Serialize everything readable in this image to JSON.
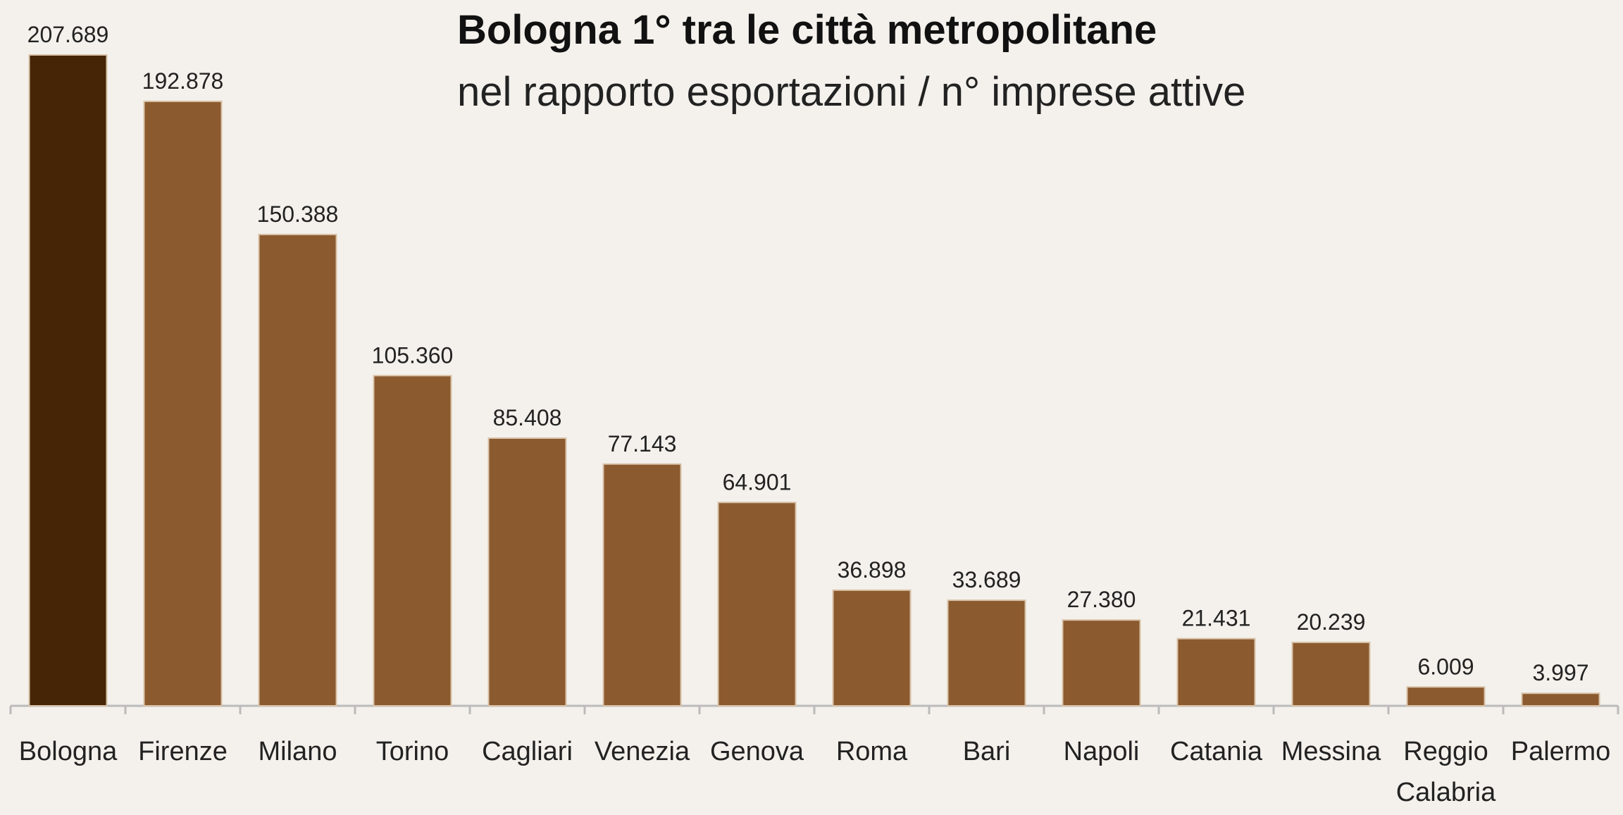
{
  "chart_data": {
    "type": "bar",
    "title": "Bologna 1° tra le città metropolitane",
    "subtitle": "nel rapporto esportazioni / n° imprese attive",
    "categories": [
      "Bologna",
      "Firenze",
      "Milano",
      "Torino",
      "Cagliari",
      "Venezia",
      "Genova",
      "Roma",
      "Bari",
      "Napoli",
      "Catania",
      "Messina",
      "Reggio Calabria",
      "Palermo"
    ],
    "values": [
      207689,
      192878,
      150388,
      105360,
      85408,
      77143,
      64901,
      36898,
      33689,
      27380,
      21431,
      20239,
      6009,
      3997
    ],
    "value_labels": [
      "207.689",
      "192.878",
      "150.388",
      "105.360",
      "85.408",
      "77.143",
      "64.901",
      "36.898",
      "33.689",
      "27.380",
      "21.431",
      "20.239",
      "6.009",
      "3.997"
    ],
    "colors": [
      "#452505",
      "#8b5a2e",
      "#8b5a2e",
      "#8b5a2e",
      "#8b5a2e",
      "#8b5a2e",
      "#8b5a2e",
      "#8b5a2e",
      "#8b5a2e",
      "#8b5a2e",
      "#8b5a2e",
      "#8b5a2e",
      "#8b5a2e",
      "#8b5a2e"
    ]
  }
}
